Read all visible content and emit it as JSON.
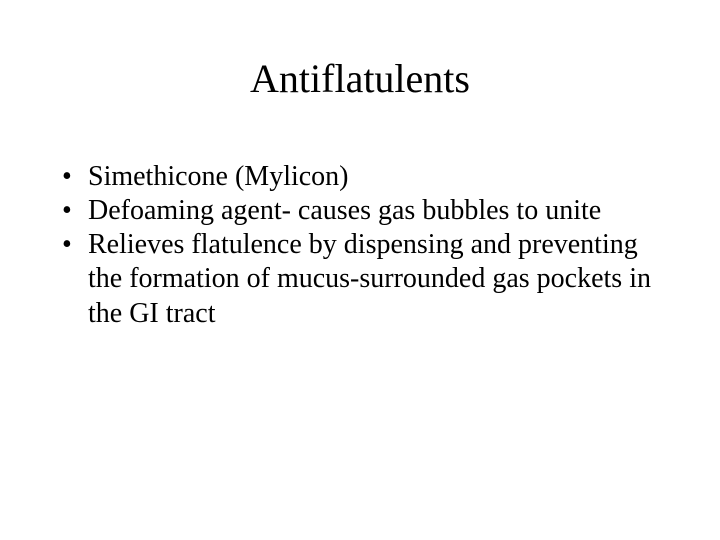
{
  "slide": {
    "title": "Antiflatulents",
    "bullets": [
      "Simethicone (Mylicon)",
      "Defoaming agent- causes gas bubbles to unite",
      "Relieves flatulence by dispensing and preventing the formation of  mucus-surrounded gas pockets in the GI tract"
    ],
    "title_fontsize": 40,
    "body_fontsize": 28,
    "text_color": "#000000",
    "background_color": "#ffffff",
    "font_family": "Times New Roman"
  }
}
